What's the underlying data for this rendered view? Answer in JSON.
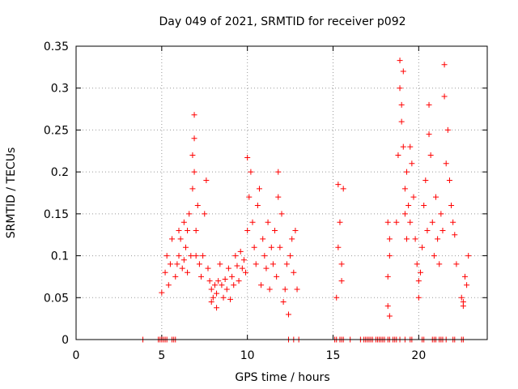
{
  "chart_data": {
    "type": "scatter",
    "title": "Day 049 of 2021, SRMTID for receiver p092",
    "xlabel": "GPS time / hours",
    "ylabel": "SRMTID / TECUs",
    "xlim": [
      0,
      24
    ],
    "ylim": [
      0,
      0.35
    ],
    "xticks": [
      0,
      5,
      10,
      15,
      20
    ],
    "xtick_labels": [
      "0",
      "5",
      "10",
      "15",
      "20"
    ],
    "yticks": [
      0,
      0.05,
      0.1,
      0.15,
      0.2,
      0.25,
      0.3,
      0.35
    ],
    "ytick_labels": [
      "0",
      "0.05",
      "0.1",
      "0.15",
      "0.2",
      "0.25",
      "0.3",
      "0.35"
    ],
    "grid": true,
    "marker": "+",
    "color": "#ff0000",
    "series": [
      {
        "name": "SRMTID",
        "points": [
          [
            3.9,
            0
          ],
          [
            4.8,
            0
          ],
          [
            4.9,
            0
          ],
          [
            5.0,
            0
          ],
          [
            5.1,
            0
          ],
          [
            5.2,
            0
          ],
          [
            5.3,
            0
          ],
          [
            5.6,
            0
          ],
          [
            5.7,
            0
          ],
          [
            5.8,
            0
          ],
          [
            12.4,
            0
          ],
          [
            12.7,
            0
          ],
          [
            13.0,
            0
          ],
          [
            15.1,
            0
          ],
          [
            15.2,
            0
          ],
          [
            15.4,
            0
          ],
          [
            15.5,
            0
          ],
          [
            15.6,
            0
          ],
          [
            16.0,
            0
          ],
          [
            16.6,
            0
          ],
          [
            16.8,
            0
          ],
          [
            16.9,
            0
          ],
          [
            17.0,
            0
          ],
          [
            17.1,
            0
          ],
          [
            17.2,
            0
          ],
          [
            17.3,
            0
          ],
          [
            17.5,
            0
          ],
          [
            17.6,
            0
          ],
          [
            17.7,
            0
          ],
          [
            17.8,
            0
          ],
          [
            17.9,
            0
          ],
          [
            18.0,
            0
          ],
          [
            18.2,
            0
          ],
          [
            18.3,
            0
          ],
          [
            18.5,
            0
          ],
          [
            18.6,
            0
          ],
          [
            18.7,
            0
          ],
          [
            18.9,
            0
          ],
          [
            19.2,
            0
          ],
          [
            19.5,
            0
          ],
          [
            19.6,
            0
          ],
          [
            20.2,
            0
          ],
          [
            20.3,
            0
          ],
          [
            20.8,
            0
          ],
          [
            20.9,
            0
          ],
          [
            21.0,
            0
          ],
          [
            21.2,
            0
          ],
          [
            21.3,
            0
          ],
          [
            21.4,
            0
          ],
          [
            21.6,
            0
          ],
          [
            22.0,
            0
          ],
          [
            22.1,
            0
          ],
          [
            22.5,
            0
          ],
          [
            22.6,
            0
          ],
          [
            5.0,
            0.056
          ],
          [
            5.2,
            0.08
          ],
          [
            5.3,
            0.1
          ],
          [
            5.4,
            0.065
          ],
          [
            5.5,
            0.09
          ],
          [
            5.6,
            0.12
          ],
          [
            5.8,
            0.075
          ],
          [
            5.9,
            0.09
          ],
          [
            6.0,
            0.1
          ],
          [
            6.0,
            0.13
          ],
          [
            6.1,
            0.12
          ],
          [
            6.2,
            0.085
          ],
          [
            6.3,
            0.14
          ],
          [
            6.3,
            0.095
          ],
          [
            6.4,
            0.11
          ],
          [
            6.5,
            0.13
          ],
          [
            6.5,
            0.08
          ],
          [
            6.6,
            0.15
          ],
          [
            6.7,
            0.1
          ],
          [
            6.8,
            0.22
          ],
          [
            6.8,
            0.18
          ],
          [
            6.9,
            0.2
          ],
          [
            6.9,
            0.268
          ],
          [
            6.9,
            0.24
          ],
          [
            7.0,
            0.13
          ],
          [
            7.0,
            0.1
          ],
          [
            7.1,
            0.16
          ],
          [
            7.2,
            0.09
          ],
          [
            7.3,
            0.075
          ],
          [
            7.4,
            0.1
          ],
          [
            7.5,
            0.15
          ],
          [
            7.6,
            0.19
          ],
          [
            7.7,
            0.085
          ],
          [
            7.8,
            0.07
          ],
          [
            7.9,
            0.06
          ],
          [
            7.9,
            0.045
          ],
          [
            8.0,
            0.05
          ],
          [
            8.1,
            0.065
          ],
          [
            8.2,
            0.038
          ],
          [
            8.2,
            0.055
          ],
          [
            8.3,
            0.07
          ],
          [
            8.4,
            0.09
          ],
          [
            8.5,
            0.065
          ],
          [
            8.6,
            0.05
          ],
          [
            8.7,
            0.072
          ],
          [
            8.8,
            0.06
          ],
          [
            8.9,
            0.085
          ],
          [
            9.0,
            0.048
          ],
          [
            9.1,
            0.075
          ],
          [
            9.2,
            0.065
          ],
          [
            9.3,
            0.1
          ],
          [
            9.4,
            0.088
          ],
          [
            9.5,
            0.07
          ],
          [
            9.6,
            0.105
          ],
          [
            9.7,
            0.085
          ],
          [
            9.8,
            0.095
          ],
          [
            9.9,
            0.08
          ],
          [
            10.0,
            0.13
          ],
          [
            10.0,
            0.217
          ],
          [
            10.1,
            0.17
          ],
          [
            10.2,
            0.2
          ],
          [
            10.3,
            0.14
          ],
          [
            10.4,
            0.11
          ],
          [
            10.5,
            0.09
          ],
          [
            10.6,
            0.16
          ],
          [
            10.7,
            0.18
          ],
          [
            10.8,
            0.065
          ],
          [
            10.9,
            0.12
          ],
          [
            11.0,
            0.1
          ],
          [
            11.1,
            0.085
          ],
          [
            11.2,
            0.14
          ],
          [
            11.3,
            0.06
          ],
          [
            11.4,
            0.11
          ],
          [
            11.5,
            0.09
          ],
          [
            11.6,
            0.13
          ],
          [
            11.7,
            0.075
          ],
          [
            11.8,
            0.2
          ],
          [
            11.8,
            0.17
          ],
          [
            11.9,
            0.11
          ],
          [
            12.0,
            0.15
          ],
          [
            12.1,
            0.045
          ],
          [
            12.2,
            0.06
          ],
          [
            12.3,
            0.09
          ],
          [
            12.4,
            0.03
          ],
          [
            12.5,
            0.1
          ],
          [
            12.6,
            0.12
          ],
          [
            12.7,
            0.08
          ],
          [
            12.8,
            0.13
          ],
          [
            12.9,
            0.06
          ],
          [
            15.3,
            0.11
          ],
          [
            15.3,
            0.185
          ],
          [
            15.4,
            0.14
          ],
          [
            15.5,
            0.09
          ],
          [
            15.5,
            0.07
          ],
          [
            15.6,
            0.18
          ],
          [
            15.2,
            0.05
          ],
          [
            18.2,
            0.14
          ],
          [
            18.3,
            0.12
          ],
          [
            18.3,
            0.1
          ],
          [
            18.2,
            0.075
          ],
          [
            18.2,
            0.04
          ],
          [
            18.3,
            0.028
          ],
          [
            18.7,
            0.14
          ],
          [
            18.8,
            0.22
          ],
          [
            18.9,
            0.333
          ],
          [
            18.9,
            0.3
          ],
          [
            19.0,
            0.28
          ],
          [
            19.0,
            0.26
          ],
          [
            19.1,
            0.32
          ],
          [
            19.1,
            0.23
          ],
          [
            19.2,
            0.18
          ],
          [
            19.2,
            0.15
          ],
          [
            19.3,
            0.12
          ],
          [
            19.3,
            0.2
          ],
          [
            19.4,
            0.16
          ],
          [
            19.5,
            0.23
          ],
          [
            19.5,
            0.14
          ],
          [
            19.6,
            0.21
          ],
          [
            19.7,
            0.17
          ],
          [
            19.8,
            0.12
          ],
          [
            19.9,
            0.09
          ],
          [
            20.0,
            0.07
          ],
          [
            20.0,
            0.05
          ],
          [
            20.1,
            0.08
          ],
          [
            20.2,
            0.11
          ],
          [
            20.3,
            0.16
          ],
          [
            20.4,
            0.19
          ],
          [
            20.5,
            0.13
          ],
          [
            20.6,
            0.28
          ],
          [
            20.6,
            0.245
          ],
          [
            20.7,
            0.22
          ],
          [
            20.8,
            0.14
          ],
          [
            20.9,
            0.1
          ],
          [
            21.0,
            0.17
          ],
          [
            21.1,
            0.12
          ],
          [
            21.2,
            0.09
          ],
          [
            21.3,
            0.15
          ],
          [
            21.4,
            0.13
          ],
          [
            21.5,
            0.328
          ],
          [
            21.5,
            0.29
          ],
          [
            21.6,
            0.21
          ],
          [
            21.7,
            0.25
          ],
          [
            21.8,
            0.19
          ],
          [
            21.9,
            0.16
          ],
          [
            22.0,
            0.14
          ],
          [
            22.1,
            0.125
          ],
          [
            22.2,
            0.09
          ],
          [
            22.5,
            0.05
          ],
          [
            22.6,
            0.045
          ],
          [
            22.6,
            0.04
          ],
          [
            22.7,
            0.075
          ],
          [
            22.8,
            0.065
          ],
          [
            22.9,
            0.1
          ]
        ]
      }
    ]
  }
}
